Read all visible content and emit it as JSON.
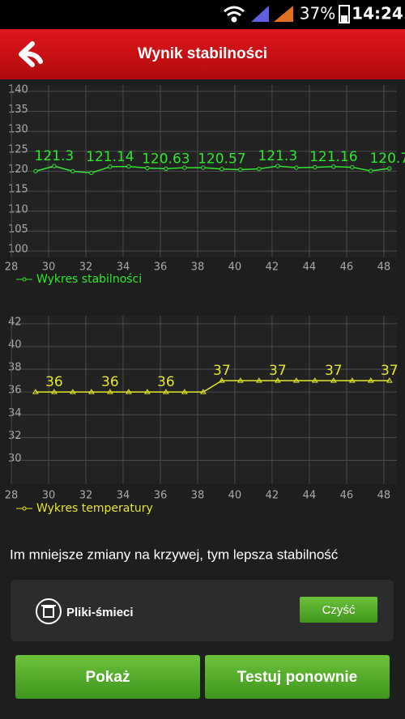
{
  "status_bar": {
    "battery": "37%",
    "time": "14:24"
  },
  "header": {
    "title": "Wynik stabilności"
  },
  "chart_data": [
    {
      "type": "line",
      "x": [
        29.3,
        30.3,
        31.3,
        32.3,
        33.3,
        34.3,
        35.3,
        36.3,
        37.3,
        38.3,
        39.3,
        40.3,
        41.3,
        42.3,
        43.3,
        44.3,
        45.3,
        46.3,
        47.3,
        48.3
      ],
      "series": [
        {
          "name": "Wykres stabilności",
          "color": "#2ee82e",
          "values": [
            120.0,
            121.3,
            120.0,
            119.6,
            121.14,
            121.2,
            120.8,
            120.63,
            120.9,
            120.9,
            120.57,
            120.4,
            120.6,
            121.3,
            120.9,
            121.0,
            121.16,
            121.0,
            120.1,
            120.7
          ],
          "value_labels": [
            null,
            "121.3",
            null,
            null,
            "121.14",
            null,
            null,
            "120.63",
            null,
            null,
            "120.57",
            null,
            null,
            "121.3",
            null,
            null,
            "121.16",
            null,
            null,
            "120.7"
          ]
        }
      ],
      "xlim": [
        28,
        48.7
      ],
      "xticks": [
        28,
        30,
        32,
        34,
        36,
        38,
        40,
        42,
        44,
        46,
        48
      ],
      "ylim": [
        98.4,
        141.6
      ],
      "yticks": [
        100,
        105,
        110,
        115,
        120,
        125,
        130,
        135,
        140
      ],
      "grid": true
    },
    {
      "type": "line",
      "x": [
        29.3,
        30.3,
        31.3,
        32.3,
        33.3,
        34.3,
        35.3,
        36.3,
        37.3,
        38.3,
        39.3,
        40.3,
        41.3,
        42.3,
        43.3,
        44.3,
        45.3,
        46.3,
        47.3,
        48.3
      ],
      "series": [
        {
          "name": "Wykres temperatury",
          "color": "#e6e62e",
          "values": [
            36,
            36,
            36,
            36,
            36,
            36,
            36,
            36,
            36,
            36,
            37,
            37,
            37,
            37,
            37,
            37,
            37,
            37,
            37,
            37
          ],
          "value_labels": [
            null,
            "36",
            null,
            null,
            "36",
            null,
            null,
            "36",
            null,
            null,
            "37",
            null,
            null,
            "37",
            null,
            null,
            "37",
            null,
            null,
            "37"
          ]
        }
      ],
      "xlim": [
        28,
        48.7
      ],
      "xticks": [
        28,
        30,
        32,
        34,
        36,
        38,
        40,
        42,
        44,
        46,
        48
      ],
      "ylim": [
        27.9,
        42.7
      ],
      "yticks": [
        30,
        32,
        34,
        36,
        38,
        40,
        42
      ],
      "grid": true
    }
  ],
  "footer": {
    "hint": "Im mniejsze zmiany na krzywej, tym lepsza stabilność",
    "junk_label": "Pliki-śmieci",
    "clean_button": "Czyść",
    "show_button": "Pokaż",
    "retest_button": "Testuj ponownie"
  }
}
